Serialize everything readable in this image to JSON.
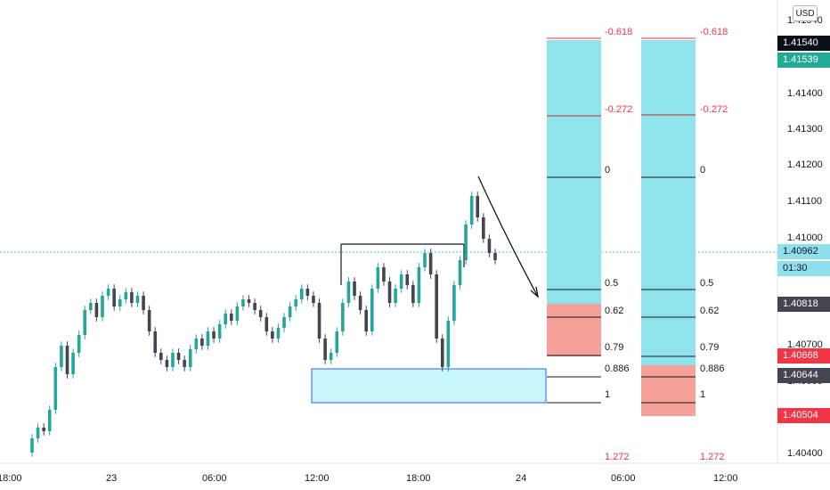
{
  "currency_label": "USD",
  "price_axis": {
    "ticks": [
      "1.41540",
      "1.41400",
      "1.41300",
      "1.41200",
      "1.41100",
      "1.41000",
      "1.40900",
      "1.40700",
      "1.40600",
      "1.40400"
    ]
  },
  "time_axis": {
    "ticks": [
      "18:00",
      "23",
      "06:00",
      "12:00",
      "18:00",
      "24",
      "06:00",
      "12:00"
    ]
  },
  "price_badges": [
    {
      "label": "1.41540",
      "bg": "#0b0f19",
      "fg": "#ffffff"
    },
    {
      "label": "1.41539",
      "bg": "#22ab94",
      "fg": "#ffffff"
    },
    {
      "label": "1.40962",
      "bg": "#8fe0ec",
      "fg": "#131722"
    },
    {
      "label": "01:30",
      "bg": "#8fe0ec",
      "fg": "#131722"
    },
    {
      "label": "1.40818",
      "bg": "#434651",
      "fg": "#ffffff"
    },
    {
      "label": "1.40668",
      "bg": "#f23645",
      "fg": "#ffffff"
    },
    {
      "label": "1.40644",
      "bg": "#434651",
      "fg": "#ffffff"
    },
    {
      "label": "1.40504",
      "bg": "#f23645",
      "fg": "#ffffff"
    }
  ],
  "fib_left": {
    "levels": [
      "-0.618",
      "-0.272",
      "0",
      "0.5",
      "0.62",
      "0.79",
      "0.886",
      "1",
      "1.272"
    ]
  },
  "fib_right": {
    "levels": [
      "-0.618",
      "-0.272",
      "0",
      "0.5",
      "0.62",
      "0.79",
      "0.886",
      "1",
      "1.272"
    ]
  },
  "colors": {
    "bull": "#26a69a",
    "bear": "#434651",
    "fib_zone": "#8fe4ec",
    "fib_zone_red": "#f7a19b",
    "fib_red": "#f23645",
    "demand_box": "#c9f8fb",
    "demand_border": "#2962ff"
  },
  "chart_data": {
    "type": "candlestick",
    "symbol_quote": "USD",
    "ylim": [
      1.4035,
      1.4165
    ],
    "close_series": [
      1.4042,
      1.4045,
      1.4044,
      1.405,
      1.4062,
      1.4068,
      1.406,
      1.4066,
      1.4071,
      1.4078,
      1.408,
      1.4076,
      1.4082,
      1.4084,
      1.4079,
      1.4081,
      1.4083,
      1.408,
      1.4082,
      1.4078,
      1.4072,
      1.4066,
      1.4064,
      1.4062,
      1.4066,
      1.4064,
      1.4062,
      1.4067,
      1.407,
      1.4068,
      1.4072,
      1.407,
      1.4074,
      1.4077,
      1.4075,
      1.4079,
      1.4081,
      1.408,
      1.4078,
      1.4076,
      1.4072,
      1.407,
      1.4073,
      1.4076,
      1.4079,
      1.4081,
      1.4084,
      1.4082,
      1.408,
      1.407,
      1.4064,
      1.4066,
      1.4072,
      1.408,
      1.4086,
      1.4082,
      1.4078,
      1.4072,
      1.4084,
      1.409,
      1.4086,
      1.408,
      1.4084,
      1.4088,
      1.4085,
      1.408,
      1.409,
      1.4094,
      1.4088,
      1.407,
      1.4062,
      1.4075,
      1.4085,
      1.4092,
      1.4102,
      1.411,
      1.4104,
      1.4098,
      1.4094,
      1.4092
    ]
  }
}
